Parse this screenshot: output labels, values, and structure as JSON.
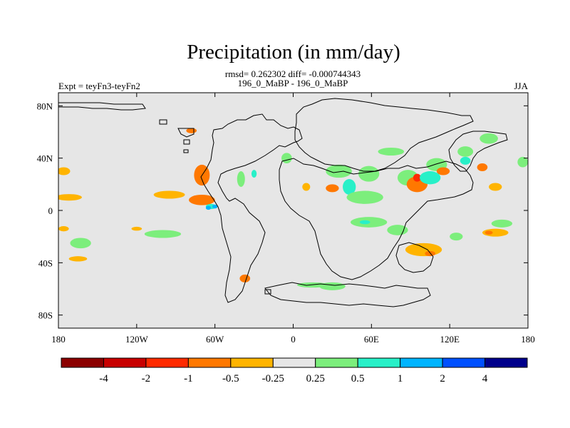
{
  "chart_data": {
    "type": "contour_map",
    "title": "Precipitation (in mm/day)",
    "stats_line": "rmsd= 0.262302 diff= -0.000744343",
    "comparison": "196_0_MaBP - 196_0_MaBP",
    "experiment": "Expt = teyFn3-teyFn2",
    "season": "JJA",
    "lon_range": [
      -180,
      180
    ],
    "lat_range": [
      -90,
      90
    ],
    "x_ticks": [
      {
        "lon": -180,
        "label": "180"
      },
      {
        "lon": -120,
        "label": "120W"
      },
      {
        "lon": -60,
        "label": "60W"
      },
      {
        "lon": 0,
        "label": "0"
      },
      {
        "lon": 60,
        "label": "60E"
      },
      {
        "lon": 120,
        "label": "120E"
      },
      {
        "lon": 180,
        "label": "180"
      }
    ],
    "y_ticks": [
      {
        "lat": 80,
        "label": "80N"
      },
      {
        "lat": 40,
        "label": "40N"
      },
      {
        "lat": 0,
        "label": "0"
      },
      {
        "lat": -40,
        "label": "40S"
      },
      {
        "lat": -80,
        "label": "80S"
      }
    ],
    "colorbar": {
      "colors": [
        "#8b0000",
        "#c80000",
        "#ff2a00",
        "#ff7800",
        "#ffb400",
        "#e6e6e6",
        "#7cee7c",
        "#28f0c8",
        "#00b4ff",
        "#0050ff",
        "#00008b"
      ],
      "boundaries": [
        -4,
        -2,
        -1,
        -0.5,
        -0.25,
        0.25,
        0.5,
        1,
        2,
        4
      ],
      "labels": [
        "-4",
        "-2",
        "-1",
        "-0.5",
        "-0.25",
        "0.25",
        "0.5",
        "1",
        "2",
        "4"
      ]
    },
    "anomaly_regions": [
      {
        "lon": -176,
        "lat": 30,
        "rx": 5,
        "ry": 3,
        "level": 4
      },
      {
        "lon": -172,
        "lat": 10,
        "rx": 10,
        "ry": 2.5,
        "level": 4
      },
      {
        "lon": -163,
        "lat": -25,
        "rx": 8,
        "ry": 4,
        "level": 6
      },
      {
        "lon": -165,
        "lat": -37,
        "rx": 7,
        "ry": 2,
        "level": 4
      },
      {
        "lon": -100,
        "lat": -18,
        "rx": 14,
        "ry": 3,
        "level": 6
      },
      {
        "lon": -95,
        "lat": 12,
        "rx": 12,
        "ry": 3,
        "level": 4
      },
      {
        "lon": -70,
        "lat": 27,
        "rx": 6,
        "ry": 8,
        "level": 3
      },
      {
        "lon": -70,
        "lat": 8,
        "rx": 10,
        "ry": 4,
        "level": 3
      },
      {
        "lon": -63,
        "lat": 3,
        "rx": 4,
        "ry": 2,
        "level": 7
      },
      {
        "lon": -65,
        "lat": 2,
        "rx": 2,
        "ry": 1.5,
        "level": 8
      },
      {
        "lon": -60,
        "lat": 3,
        "rx": 2,
        "ry": 1.5,
        "level": 8
      },
      {
        "lon": -78,
        "lat": 61,
        "rx": 4,
        "ry": 2,
        "level": 3
      },
      {
        "lon": -37,
        "lat": -52,
        "rx": 4,
        "ry": 3,
        "level": 3
      },
      {
        "lon": -40,
        "lat": 24,
        "rx": 3,
        "ry": 6,
        "level": 6
      },
      {
        "lon": -30,
        "lat": 28,
        "rx": 2,
        "ry": 3,
        "level": 7
      },
      {
        "lon": -5,
        "lat": 40,
        "rx": 4,
        "ry": 4,
        "level": 6
      },
      {
        "lon": 10,
        "lat": 18,
        "rx": 3,
        "ry": 3,
        "level": 4
      },
      {
        "lon": 15,
        "lat": -57,
        "rx": 12,
        "ry": 2,
        "level": 6
      },
      {
        "lon": 30,
        "lat": -58,
        "rx": 10,
        "ry": 3,
        "level": 6
      },
      {
        "lon": 35,
        "lat": 30,
        "rx": 10,
        "ry": 5,
        "level": 6
      },
      {
        "lon": 30,
        "lat": 17,
        "rx": 5,
        "ry": 3,
        "level": 3
      },
      {
        "lon": 43,
        "lat": 18,
        "rx": 5,
        "ry": 6,
        "level": 7
      },
      {
        "lon": 55,
        "lat": 10,
        "rx": 14,
        "ry": 5,
        "level": 6
      },
      {
        "lon": 58,
        "lat": -9,
        "rx": 14,
        "ry": 4,
        "level": 6
      },
      {
        "lon": 55,
        "lat": -9,
        "rx": 4,
        "ry": 1.5,
        "level": 7
      },
      {
        "lon": 58,
        "lat": 28,
        "rx": 8,
        "ry": 6,
        "level": 6
      },
      {
        "lon": 75,
        "lat": 45,
        "rx": 10,
        "ry": 3,
        "level": 6
      },
      {
        "lon": 80,
        "lat": -15,
        "rx": 8,
        "ry": 4,
        "level": 6
      },
      {
        "lon": 88,
        "lat": 25,
        "rx": 8,
        "ry": 6,
        "level": 6
      },
      {
        "lon": 95,
        "lat": 20,
        "rx": 8,
        "ry": 6,
        "level": 3
      },
      {
        "lon": 95,
        "lat": 25,
        "rx": 3,
        "ry": 3,
        "level": 2
      },
      {
        "lon": 105,
        "lat": 25,
        "rx": 8,
        "ry": 5,
        "level": 7
      },
      {
        "lon": 110,
        "lat": 35,
        "rx": 8,
        "ry": 5,
        "level": 6
      },
      {
        "lon": 115,
        "lat": 30,
        "rx": 5,
        "ry": 3,
        "level": 3
      },
      {
        "lon": 100,
        "lat": -30,
        "rx": 14,
        "ry": 5,
        "level": 4
      },
      {
        "lon": 105,
        "lat": -33,
        "rx": 4,
        "ry": 2,
        "level": 3
      },
      {
        "lon": 125,
        "lat": -20,
        "rx": 5,
        "ry": 3,
        "level": 6
      },
      {
        "lon": 132,
        "lat": 45,
        "rx": 6,
        "ry": 4,
        "level": 6
      },
      {
        "lon": 132,
        "lat": 38,
        "rx": 4,
        "ry": 3,
        "level": 7
      },
      {
        "lon": 145,
        "lat": 33,
        "rx": 4,
        "ry": 3,
        "level": 3
      },
      {
        "lon": 150,
        "lat": 55,
        "rx": 7,
        "ry": 4,
        "level": 6
      },
      {
        "lon": 155,
        "lat": 18,
        "rx": 5,
        "ry": 3,
        "level": 4
      },
      {
        "lon": 160,
        "lat": -10,
        "rx": 8,
        "ry": 3,
        "level": 6
      },
      {
        "lon": 155,
        "lat": -17,
        "rx": 10,
        "ry": 3,
        "level": 4
      },
      {
        "lon": 150,
        "lat": -17,
        "rx": 3,
        "ry": 1.5,
        "level": 3
      },
      {
        "lon": 176,
        "lat": 37,
        "rx": 4,
        "ry": 4,
        "level": 6
      },
      {
        "lon": -176,
        "lat": -14,
        "rx": 4,
        "ry": 2,
        "level": 4
      },
      {
        "lon": -120,
        "lat": -14,
        "rx": 4,
        "ry": 1.5,
        "level": 4
      }
    ]
  }
}
